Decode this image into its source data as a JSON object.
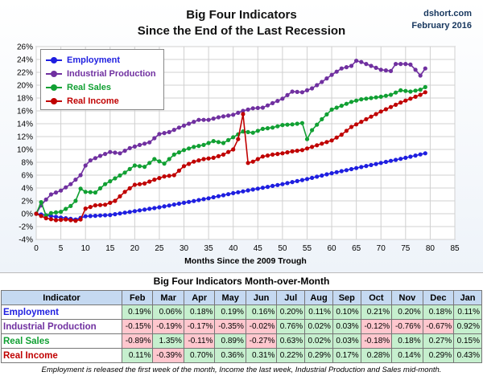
{
  "header": {
    "title_line1": "Big Four Indicators",
    "title_line2": "Since the End of the Last Recession",
    "brand": "dshort.com",
    "date": "February 2016"
  },
  "chart_data": {
    "type": "line",
    "xlabel": "Months Since the 2009 Trough",
    "ylabel": "",
    "xlim": [
      0,
      85
    ],
    "ylim": [
      -4,
      26
    ],
    "x_ticks": [
      0,
      5,
      10,
      15,
      20,
      25,
      30,
      35,
      40,
      45,
      50,
      55,
      60,
      65,
      70,
      75,
      80,
      85
    ],
    "y_ticks": [
      "-4%",
      "-2%",
      "0%",
      "2%",
      "4%",
      "6%",
      "8%",
      "10%",
      "12%",
      "14%",
      "16%",
      "18%",
      "20%",
      "22%",
      "24%",
      "26%"
    ],
    "grid": true,
    "legend_position": "top-left",
    "series": [
      {
        "name": "Employment",
        "color": "#1f1fe0",
        "points": [
          [
            0,
            0
          ],
          [
            5,
            -0.6
          ],
          [
            8,
            -0.9
          ],
          [
            10,
            -0.4
          ],
          [
            15,
            -0.2
          ],
          [
            20,
            0.4
          ],
          [
            25,
            1.0
          ],
          [
            30,
            1.7
          ],
          [
            35,
            2.4
          ],
          [
            40,
            3.2
          ],
          [
            45,
            3.9
          ],
          [
            50,
            4.6
          ],
          [
            55,
            5.4
          ],
          [
            60,
            6.3
          ],
          [
            65,
            7.1
          ],
          [
            70,
            7.9
          ],
          [
            75,
            8.7
          ],
          [
            79,
            9.4
          ]
        ]
      },
      {
        "name": "Industrial Production",
        "color": "#7030a0",
        "points": [
          [
            0,
            0
          ],
          [
            1,
            1.3
          ],
          [
            2,
            2.2
          ],
          [
            3,
            3.0
          ],
          [
            5,
            3.6
          ],
          [
            7,
            4.6
          ],
          [
            9,
            6.0
          ],
          [
            10,
            7.5
          ],
          [
            11,
            8.3
          ],
          [
            13,
            9.0
          ],
          [
            15,
            9.6
          ],
          [
            17,
            9.4
          ],
          [
            19,
            10.2
          ],
          [
            21,
            10.7
          ],
          [
            23,
            11.1
          ],
          [
            25,
            12.4
          ],
          [
            27,
            12.7
          ],
          [
            29,
            13.4
          ],
          [
            31,
            14.0
          ],
          [
            33,
            14.6
          ],
          [
            35,
            14.6
          ],
          [
            37,
            15.0
          ],
          [
            40,
            15.4
          ],
          [
            42,
            16.0
          ],
          [
            44,
            16.4
          ],
          [
            46,
            16.5
          ],
          [
            48,
            17.2
          ],
          [
            50,
            17.9
          ],
          [
            52,
            19.0
          ],
          [
            54,
            18.9
          ],
          [
            56,
            19.5
          ],
          [
            58,
            20.5
          ],
          [
            60,
            21.6
          ],
          [
            62,
            22.6
          ],
          [
            64,
            23.0
          ],
          [
            65,
            23.8
          ],
          [
            66,
            23.6
          ],
          [
            67,
            23.3
          ],
          [
            68,
            23.0
          ],
          [
            70,
            22.4
          ],
          [
            72,
            22.2
          ],
          [
            73,
            23.3
          ],
          [
            75,
            23.3
          ],
          [
            76,
            23.2
          ],
          [
            77,
            22.4
          ],
          [
            78,
            21.5
          ],
          [
            79,
            22.6
          ]
        ]
      },
      {
        "name": "Real Sales",
        "color": "#11a033",
        "points": [
          [
            0,
            0
          ],
          [
            1,
            1.8
          ],
          [
            2,
            -0.3
          ],
          [
            3,
            0.1
          ],
          [
            5,
            0.3
          ],
          [
            7,
            1.2
          ],
          [
            8,
            2.0
          ],
          [
            9,
            3.9
          ],
          [
            10,
            3.4
          ],
          [
            12,
            3.3
          ],
          [
            14,
            4.6
          ],
          [
            16,
            5.5
          ],
          [
            18,
            6.4
          ],
          [
            20,
            7.5
          ],
          [
            22,
            7.3
          ],
          [
            24,
            8.5
          ],
          [
            26,
            7.8
          ],
          [
            28,
            9.2
          ],
          [
            30,
            9.9
          ],
          [
            32,
            10.4
          ],
          [
            34,
            10.7
          ],
          [
            36,
            11.3
          ],
          [
            38,
            11.0
          ],
          [
            40,
            11.9
          ],
          [
            42,
            12.8
          ],
          [
            44,
            12.6
          ],
          [
            46,
            13.2
          ],
          [
            48,
            13.4
          ],
          [
            50,
            13.8
          ],
          [
            52,
            13.9
          ],
          [
            54,
            14.1
          ],
          [
            55,
            11.6
          ],
          [
            56,
            13.0
          ],
          [
            58,
            14.7
          ],
          [
            60,
            16.2
          ],
          [
            62,
            16.8
          ],
          [
            64,
            17.4
          ],
          [
            66,
            17.8
          ],
          [
            68,
            18.0
          ],
          [
            70,
            18.2
          ],
          [
            72,
            18.5
          ],
          [
            74,
            19.2
          ],
          [
            76,
            19.0
          ],
          [
            78,
            19.3
          ],
          [
            79,
            19.7
          ]
        ]
      },
      {
        "name": "Real Income",
        "color": "#c00000",
        "points": [
          [
            0,
            0
          ],
          [
            2,
            -0.7
          ],
          [
            4,
            -1.0
          ],
          [
            6,
            -0.9
          ],
          [
            8,
            -1.1
          ],
          [
            9,
            -0.9
          ],
          [
            10,
            0.8
          ],
          [
            12,
            1.3
          ],
          [
            14,
            1.4
          ],
          [
            16,
            2.0
          ],
          [
            18,
            3.4
          ],
          [
            20,
            4.5
          ],
          [
            22,
            4.7
          ],
          [
            24,
            5.3
          ],
          [
            26,
            5.8
          ],
          [
            28,
            6.0
          ],
          [
            30,
            7.4
          ],
          [
            32,
            8.1
          ],
          [
            34,
            8.5
          ],
          [
            36,
            8.7
          ],
          [
            38,
            9.2
          ],
          [
            40,
            10.0
          ],
          [
            41,
            11.6
          ],
          [
            42,
            15.5
          ],
          [
            43,
            7.9
          ],
          [
            44,
            8.1
          ],
          [
            46,
            8.9
          ],
          [
            48,
            9.2
          ],
          [
            50,
            9.4
          ],
          [
            52,
            9.7
          ],
          [
            54,
            9.9
          ],
          [
            56,
            10.4
          ],
          [
            58,
            10.9
          ],
          [
            60,
            11.4
          ],
          [
            62,
            12.3
          ],
          [
            64,
            13.5
          ],
          [
            66,
            14.3
          ],
          [
            68,
            15.1
          ],
          [
            70,
            15.9
          ],
          [
            72,
            16.6
          ],
          [
            74,
            17.3
          ],
          [
            76,
            17.9
          ],
          [
            78,
            18.5
          ],
          [
            79,
            18.9
          ]
        ]
      }
    ]
  },
  "table": {
    "title": "Big Four Indicators Month-over-Month",
    "header_label": "Indicator",
    "months": [
      "Feb",
      "Mar",
      "Apr",
      "May",
      "Jun",
      "Jul",
      "Aug",
      "Sep",
      "Oct",
      "Nov",
      "Dec",
      "Jan"
    ],
    "rows": [
      {
        "label": "Employment",
        "color": "#1f1fe0",
        "values": [
          "0.19%",
          "0.06%",
          "0.18%",
          "0.19%",
          "0.16%",
          "0.20%",
          "0.11%",
          "0.10%",
          "0.21%",
          "0.20%",
          "0.18%",
          "0.11%"
        ]
      },
      {
        "label": "Industrial Production",
        "color": "#7030a0",
        "values": [
          "-0.15%",
          "-0.19%",
          "-0.17%",
          "-0.35%",
          "-0.02%",
          "0.76%",
          "0.02%",
          "0.03%",
          "-0.12%",
          "-0.76%",
          "-0.67%",
          "0.92%"
        ]
      },
      {
        "label": "Real Sales",
        "color": "#11a033",
        "values": [
          "-0.89%",
          "1.35%",
          "-0.11%",
          "0.89%",
          "-0.27%",
          "0.63%",
          "0.02%",
          "0.03%",
          "-0.18%",
          "0.18%",
          "0.27%",
          "0.15%"
        ]
      },
      {
        "label": "Real Income",
        "color": "#c00000",
        "values": [
          "0.11%",
          "-0.39%",
          "0.70%",
          "0.36%",
          "0.31%",
          "0.22%",
          "0.29%",
          "0.17%",
          "0.28%",
          "0.14%",
          "0.29%",
          "0.43%"
        ]
      }
    ]
  },
  "footnote": "Employment is released the first week of the month, Income the last week, Industrial Production and Sales mid-month."
}
